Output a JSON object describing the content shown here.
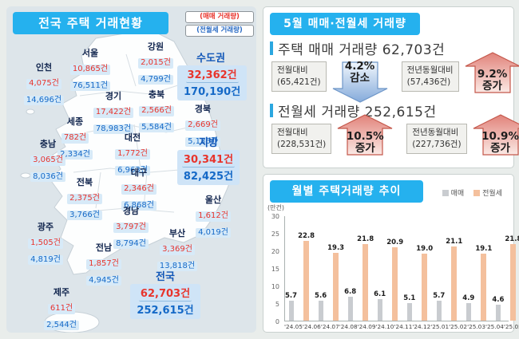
{
  "left_panel": {
    "title": "전국 주택 거래현황",
    "legend": {
      "sale": "(매매 거래량)",
      "rent": "(전월세 거래량)"
    },
    "regions": [
      {
        "key": "incheon",
        "name": "인천",
        "sale": "4,075건",
        "rent": "14,696건",
        "summary": false
      },
      {
        "key": "seoul",
        "name": "서울",
        "sale": "10,865건",
        "rent": "76,511건",
        "summary": false
      },
      {
        "key": "gangwon",
        "name": "강원",
        "sale": "2,015건",
        "rent": "4,799건",
        "summary": false
      },
      {
        "key": "sudogwon",
        "name": "수도권",
        "sale": "32,362건",
        "rent": "170,190건",
        "summary": true
      },
      {
        "key": "gyeonggi",
        "name": "경기",
        "sale": "17,422건",
        "rent": "78,983건",
        "summary": false
      },
      {
        "key": "chungbuk",
        "name": "충북",
        "sale": "2,566건",
        "rent": "5,584건",
        "summary": false
      },
      {
        "key": "gyeongbuk",
        "name": "경북",
        "sale": "2,669건",
        "rent": "5,136건",
        "summary": false
      },
      {
        "key": "sejong",
        "name": "세종",
        "sale": "782건",
        "rent": "2,334건",
        "summary": false
      },
      {
        "key": "daejeon",
        "name": "대전",
        "sale": "1,772건",
        "rent": "6,963건",
        "summary": false
      },
      {
        "key": "chungnam",
        "name": "충남",
        "sale": "3,065건",
        "rent": "8,036건",
        "summary": false
      },
      {
        "key": "jibang",
        "name": "지방",
        "sale": "30,341건",
        "rent": "82,425건",
        "summary": true
      },
      {
        "key": "daegu",
        "name": "대구",
        "sale": "2,346건",
        "rent": "6,868건",
        "summary": false
      },
      {
        "key": "jeonbuk",
        "name": "전북",
        "sale": "2,375건",
        "rent": "3,766건",
        "summary": false
      },
      {
        "key": "ulsan",
        "name": "울산",
        "sale": "1,612건",
        "rent": "4,019건",
        "summary": false
      },
      {
        "key": "gyeongnam",
        "name": "경남",
        "sale": "3,797건",
        "rent": "8,794건",
        "summary": false
      },
      {
        "key": "gwangju",
        "name": "광주",
        "sale": "1,505건",
        "rent": "4,819건",
        "summary": false
      },
      {
        "key": "busan",
        "name": "부산",
        "sale": "3,369건",
        "rent": "13,818건",
        "summary": false
      },
      {
        "key": "jeonnam",
        "name": "전남",
        "sale": "1,857건",
        "rent": "4,945건",
        "summary": false
      },
      {
        "key": "jeonguk",
        "name": "전국",
        "sale": "62,703건",
        "rent": "252,615건",
        "summary": true
      },
      {
        "key": "jeju",
        "name": "제주",
        "sale": "611건",
        "rent": "2,544건",
        "summary": false
      }
    ]
  },
  "right_top": {
    "title": "5월 매매·전월세 거래량",
    "sections": [
      {
        "heading": "주택 매매 거래량 62,703건",
        "comparisons": [
          {
            "label": "전월대비",
            "base": "(65,421건)",
            "pct": "4.2%",
            "word": "감소",
            "direction": "down"
          },
          {
            "label": "전년동월대비",
            "base": "(57,436건)",
            "pct": "9.2%",
            "word": "증가",
            "direction": "up"
          }
        ]
      },
      {
        "heading": "전월세 거래량 252,615건",
        "comparisons": [
          {
            "label": "전월대비",
            "base": "(228,531건)",
            "pct": "10.5%",
            "word": "증가",
            "direction": "up"
          },
          {
            "label": "전년동월대비",
            "base": "(227,736건)",
            "pct": "10.9%",
            "word": "증가",
            "direction": "up"
          }
        ]
      }
    ]
  },
  "chart": {
    "title": "월별 주택거래량 추이",
    "unit_label": "(만건)"
  },
  "chart_data": {
    "type": "bar",
    "title": "월별 주택거래량 추이",
    "ylabel": "(만건)",
    "categories": [
      "'24.05",
      "'24.06",
      "'24.07",
      "'24.08",
      "'24.09",
      "'24.10",
      "'24.11",
      "'24.12",
      "'25.01",
      "'25.02",
      "'25.03",
      "'25.04",
      "'25.05"
    ],
    "series": [
      {
        "name": "매매",
        "color": "#c9ccd0",
        "values": [
          5.7,
          5.6,
          6.8,
          6.1,
          5.1,
          5.7,
          4.9,
          4.6,
          3.8,
          5.1,
          6.7,
          6.5,
          6.3
        ]
      },
      {
        "name": "전월세",
        "color": "#f4c09d",
        "values": [
          22.8,
          19.3,
          21.8,
          20.9,
          19.0,
          21.1,
          19.1,
          21.8,
          20.1,
          27.8,
          23.9,
          22.9,
          25.3
        ]
      }
    ],
    "ylim": [
      0,
      30
    ],
    "yticks": [
      0,
      5,
      10,
      15,
      20,
      25,
      30
    ],
    "grid": false,
    "legend_position": "top-right"
  }
}
